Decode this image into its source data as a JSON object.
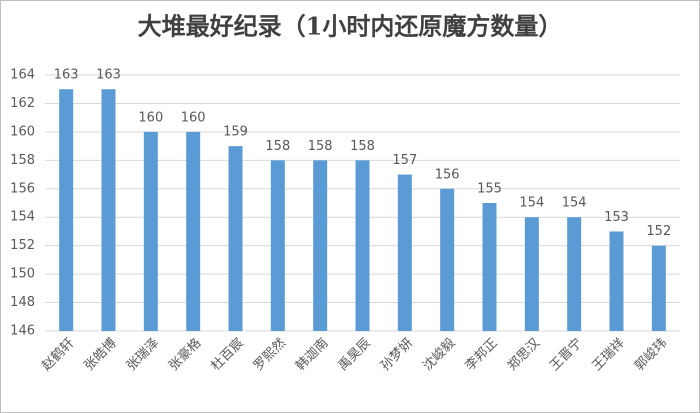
{
  "chart_data": {
    "type": "bar",
    "title": "大堆最好纪录（1小时内还原魔方数量）",
    "categories": [
      "赵鹤轩",
      "张皓博",
      "张瑞泽",
      "张豪格",
      "杜百宸",
      "罗熙然",
      "韩迦南",
      "禹昊辰",
      "孙梦妍",
      "沈峻毅",
      "李邦正",
      "郑思汉",
      "王晋宁",
      "王瑞祥",
      "郭峻玮"
    ],
    "values": [
      163,
      163,
      160,
      160,
      159,
      158,
      158,
      158,
      157,
      156,
      155,
      154,
      154,
      153,
      152
    ],
    "color": "#5b9bd5",
    "ylim": [
      146,
      164
    ],
    "yticks": [
      146,
      148,
      150,
      152,
      154,
      156,
      158,
      160,
      162,
      164
    ],
    "grid": true
  }
}
